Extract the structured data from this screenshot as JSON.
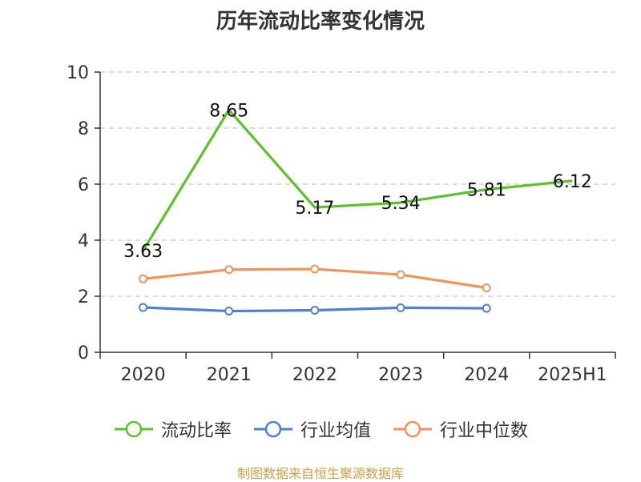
{
  "title": "历年流动比率变化情况",
  "source_text": "制图数据来自恒生聚源数据库",
  "colors": {
    "current_ratio": "#5cc227",
    "industry_mean": "#4f80d6",
    "industry_median": "#f3935c",
    "grid": "#c8c8c8",
    "axis": "#333333"
  },
  "chart_data": {
    "type": "line",
    "categories": [
      "2020",
      "2021",
      "2022",
      "2023",
      "2024",
      "2025H1"
    ],
    "ylim": [
      0,
      10
    ],
    "yticks": [
      0,
      2,
      4,
      6,
      8,
      10
    ],
    "grid": true,
    "legend_position": "bottom",
    "series": [
      {
        "name": "流动比率",
        "values": [
          3.63,
          8.65,
          5.17,
          5.34,
          5.81,
          6.12
        ],
        "labels": [
          "3.63",
          "8.65",
          "5.17",
          "5.34",
          "5.81",
          "6.12"
        ]
      },
      {
        "name": "行业均值",
        "values": [
          1.6,
          1.47,
          1.5,
          1.59,
          1.57,
          null
        ]
      },
      {
        "name": "行业中位数",
        "values": [
          2.62,
          2.95,
          2.97,
          2.77,
          2.3,
          null
        ]
      }
    ]
  }
}
